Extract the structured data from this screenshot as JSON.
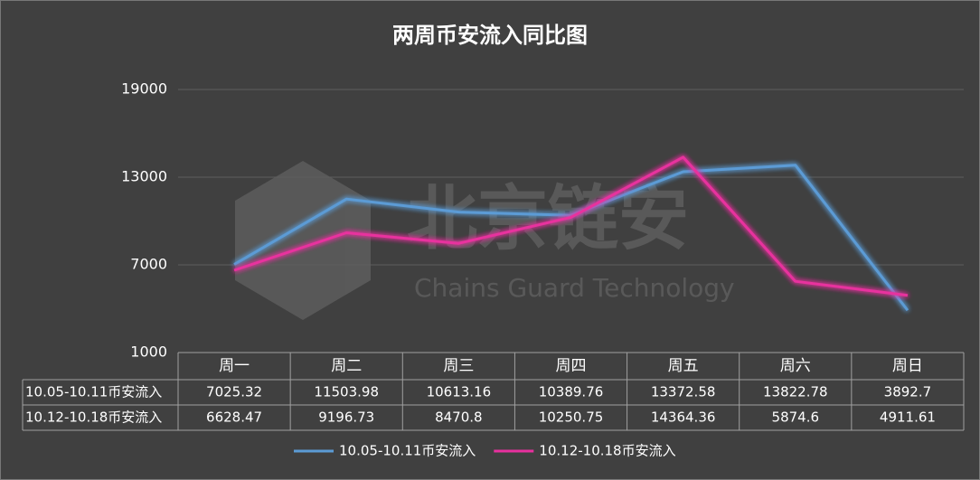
{
  "chart_data": {
    "type": "line",
    "title": "两周币安流入同比图",
    "watermark": {
      "text": "北京链安",
      "subtext": "Chains Guard Technology"
    },
    "categories": [
      "周一",
      "周二",
      "周三",
      "周四",
      "周五",
      "周六",
      "周日"
    ],
    "series": [
      {
        "name": "10.05-10.11币安流入",
        "color": "#5b9bd5",
        "values": [
          7025.32,
          11503.98,
          10613.16,
          10389.76,
          13372.58,
          13822.78,
          3892.7
        ]
      },
      {
        "name": "10.12-10.18币安流入",
        "color": "#e8309e",
        "values": [
          6628.47,
          9196.73,
          8470.8,
          10250.75,
          14364.36,
          5874.6,
          4911.61
        ]
      }
    ],
    "ylim": [
      1000,
      19000
    ],
    "yticks": [
      1000,
      7000,
      13000,
      19000
    ],
    "grid": true,
    "legend": "bottom"
  }
}
